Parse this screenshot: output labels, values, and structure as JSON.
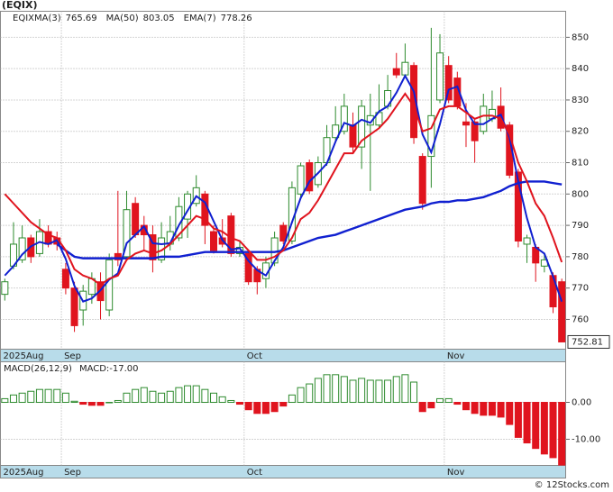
{
  "chart_data": {
    "type": "candlestick",
    "title": "(EQIX)",
    "footer": "© 12Stocks.com",
    "categories": [
      "2025Aug",
      null,
      null,
      null,
      null,
      null,
      null,
      "Sep",
      null,
      null,
      null,
      null,
      null,
      null,
      null,
      null,
      null,
      null,
      null,
      null,
      null,
      null,
      null,
      null,
      null,
      null,
      null,
      null,
      "Oct",
      null,
      null,
      null,
      null,
      null,
      null,
      null,
      null,
      null,
      null,
      null,
      null,
      null,
      null,
      null,
      null,
      null,
      null,
      null,
      null,
      null,
      null,
      "Nov",
      null,
      null,
      null,
      null,
      null,
      null,
      null,
      null,
      null,
      null,
      null,
      null,
      null
    ],
    "ohlc": {
      "name": "EQIX",
      "up_color": "#2e8b2e",
      "down_color": "#e0141e",
      "open": [
        768,
        777,
        779,
        786,
        781,
        788,
        786,
        776,
        770,
        763,
        768,
        772,
        763,
        781,
        780,
        797,
        790,
        787,
        779,
        784,
        786,
        792,
        797,
        800,
        788,
        786,
        793,
        781,
        781,
        776,
        773,
        778,
        790,
        785,
        800,
        810,
        803,
        810,
        818,
        820,
        822,
        815,
        822,
        822,
        828,
        840,
        838,
        841,
        812,
        812,
        830,
        841,
        837,
        823,
        823,
        820,
        824,
        828,
        822,
        807,
        784,
        783,
        777,
        774,
        772
      ],
      "high": [
        773,
        791,
        790,
        787,
        792,
        790,
        788,
        778,
        772,
        771,
        775,
        775,
        781,
        801,
        801,
        799,
        793,
        790,
        791,
        793,
        799,
        801,
        806,
        801,
        790,
        792,
        794,
        785,
        782,
        777,
        780,
        788,
        791,
        804,
        810,
        811,
        812,
        822,
        828,
        832,
        826,
        830,
        832,
        835,
        838,
        845,
        848,
        842,
        813,
        853,
        851,
        844,
        839,
        829,
        824,
        832,
        833,
        834,
        823,
        808,
        787,
        784,
        781,
        775,
        773
      ],
      "low": [
        766,
        776,
        778,
        778,
        780,
        783,
        782,
        768,
        756,
        758,
        765,
        760,
        761,
        777,
        779,
        786,
        782,
        775,
        778,
        782,
        785,
        786,
        796,
        784,
        781,
        783,
        780,
        780,
        771,
        768,
        770,
        777,
        784,
        784,
        799,
        800,
        802,
        809,
        817,
        819,
        813,
        808,
        801,
        821,
        827,
        837,
        837,
        816,
        795,
        802,
        829,
        829,
        827,
        815,
        810,
        819,
        823,
        820,
        805,
        783,
        778,
        772,
        775,
        762,
        752.81
      ],
      "close": [
        772,
        784,
        786,
        780,
        788,
        784,
        784,
        770,
        758,
        769,
        773,
        766,
        779,
        779,
        795,
        787,
        787,
        779,
        786,
        788,
        796,
        800,
        802,
        790,
        782,
        784,
        781,
        783,
        772,
        772,
        778,
        786,
        785,
        802,
        809,
        801,
        810,
        818,
        822,
        828,
        815,
        828,
        825,
        826,
        833,
        838,
        842,
        818,
        797,
        825,
        845,
        830,
        828,
        822,
        817,
        828,
        827,
        821,
        806,
        785,
        786,
        778,
        779,
        764,
        752.81
      ]
    },
    "series": [
      {
        "name": "MA(3)",
        "value_label": "765.69",
        "color": "#1020d0",
        "width": 2,
        "values": [
          774,
          777,
          780.7,
          783.3,
          784.7,
          784,
          785.3,
          779.3,
          770.7,
          765.7,
          766.7,
          769.3,
          772.7,
          774.7,
          784.3,
          787,
          789.7,
          784.3,
          784,
          784.3,
          790,
          794.7,
          799.3,
          797.3,
          791.3,
          785.3,
          782.3,
          782.7,
          778.7,
          775.7,
          774,
          778.7,
          783,
          791,
          798.7,
          804,
          806.7,
          809.7,
          816.7,
          822.7,
          821.7,
          823.7,
          822.7,
          826.3,
          828,
          832.3,
          837.7,
          832.7,
          819,
          813.3,
          822.3,
          833.3,
          834.3,
          826.7,
          822.3,
          822.3,
          824,
          825.3,
          818,
          804,
          792.3,
          783,
          781,
          773.7,
          765.69
        ]
      },
      {
        "name": "MA(50)",
        "value_label": "803.05",
        "color": "#1020d0",
        "width": 2.4,
        "values": [
          null,
          null,
          null,
          null,
          null,
          null,
          784,
          782,
          780,
          779.5,
          779.5,
          779.5,
          779.5,
          779.5,
          779.5,
          779.5,
          779.5,
          779.5,
          780,
          780,
          780,
          780.5,
          781,
          781.5,
          781.5,
          781.5,
          781.5,
          781.5,
          781.5,
          781.5,
          781.5,
          781.5,
          782,
          783,
          784,
          785,
          786,
          786.5,
          787,
          788,
          789,
          790,
          791,
          792,
          793,
          794,
          795,
          795.5,
          796,
          797,
          797.5,
          797.5,
          798,
          798,
          798.5,
          799,
          800,
          801,
          802.5,
          803.5,
          804,
          804,
          804,
          803.5,
          803.05
        ]
      },
      {
        "name": "EMA(7)",
        "value_label": "778.26",
        "color": "#e0141e",
        "width": 2,
        "values": [
          800,
          797,
          794,
          791,
          789,
          787,
          786,
          782,
          776,
          774,
          773,
          771,
          773,
          774,
          779,
          781,
          782,
          781,
          782,
          784,
          787,
          790,
          793,
          792,
          789,
          788,
          786,
          785,
          782,
          779,
          779,
          780,
          782,
          786,
          792,
          794,
          798,
          803,
          808,
          813,
          813,
          817,
          819,
          821,
          824,
          828,
          832,
          828,
          820,
          821,
          827,
          828,
          828,
          826,
          824,
          825,
          825,
          824,
          819,
          810,
          804,
          797,
          793,
          786,
          778.26
        ]
      }
    ],
    "ylim": [
      750.5,
      858.3
    ],
    "yticks": [
      760,
      770,
      780,
      790,
      800,
      810,
      820,
      830,
      840,
      850
    ],
    "last_label": "752.81",
    "grid": true,
    "macd": {
      "name": "MACD(26,12,9)",
      "value_label": "MACD:-17.00",
      "up_color": "#2e8b2e",
      "down_color": "#e0141e",
      "values": [
        1,
        2,
        2.5,
        3,
        3.5,
        3.5,
        3.5,
        2.5,
        0.3,
        -0.5,
        -0.8,
        -0.8,
        0,
        0.5,
        2.5,
        3.5,
        4,
        3,
        2.5,
        3,
        4,
        4.5,
        4.5,
        3.5,
        2.5,
        1.5,
        0.5,
        -0.5,
        -2,
        -3,
        -3,
        -2.5,
        -1,
        2,
        4,
        5,
        6.5,
        7.5,
        7.5,
        7,
        6,
        6.5,
        6,
        6,
        6,
        7,
        7.5,
        5.5,
        -2.5,
        -1.5,
        1,
        1,
        -0.5,
        -2,
        -3,
        -3.5,
        -3.5,
        -4,
        -6,
        -9.5,
        -11,
        -12.5,
        -14,
        -15,
        -17
      ],
      "ylim": [
        -17.1,
        11
      ],
      "yticks": [
        {
          "value": 0,
          "label": "0.00"
        },
        {
          "value": -10,
          "label": "-10.00"
        }
      ]
    }
  }
}
